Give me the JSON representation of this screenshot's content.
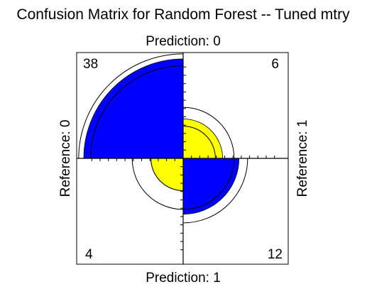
{
  "chart_data": {
    "type": "fourfold",
    "title": "Confusion Matrix for Random Forest -- Tuned mtry",
    "top_label": "Prediction: 0",
    "bottom_label": "Prediction: 1",
    "left_label": "Reference: 0",
    "right_label": "Reference: 1",
    "cells": [
      {
        "prediction": "0",
        "reference": "0",
        "count": 38,
        "label": "38",
        "quadrant": "top-left",
        "color": "#0000ff"
      },
      {
        "prediction": "0",
        "reference": "1",
        "count": 6,
        "label": "6",
        "quadrant": "top-right",
        "color": "#ffff00"
      },
      {
        "prediction": "1",
        "reference": "0",
        "count": 4,
        "label": "4",
        "quadrant": "bottom-left",
        "color": "#ffff00"
      },
      {
        "prediction": "1",
        "reference": "1",
        "count": 12,
        "label": "12",
        "quadrant": "bottom-right",
        "color": "#0000ff"
      }
    ],
    "confidence_rings": [
      {
        "quadrant": "top-left",
        "inner_count": 33,
        "outer_count": 42
      },
      {
        "quadrant": "top-right",
        "inner_count": 4,
        "outer_count": 10
      },
      {
        "quadrant": "bottom-left",
        "inner_count": 4,
        "outer_count": 10
      },
      {
        "quadrant": "bottom-right",
        "inner_count": 10,
        "outer_count": 16
      }
    ]
  }
}
